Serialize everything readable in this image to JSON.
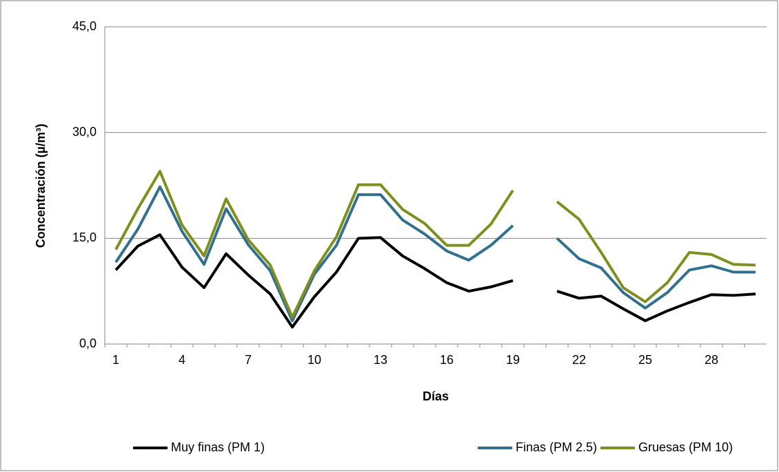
{
  "chart_data": {
    "type": "line",
    "x_label": "Días",
    "y_label": "Concentración (µ/m³)",
    "categories": [
      "1",
      null,
      null,
      "4",
      null,
      null,
      "7",
      null,
      null,
      "10",
      null,
      null,
      "13",
      null,
      null,
      "16",
      null,
      null,
      "19",
      null,
      null,
      "22",
      null,
      null,
      "25",
      null,
      null,
      "28",
      null,
      null
    ],
    "series": [
      {
        "name": "Muy finas (PM 1)",
        "color": "#000000",
        "values": [
          10.5,
          13.9,
          15.5,
          10.9,
          8.0,
          12.8,
          9.8,
          7.1,
          2.4,
          6.7,
          10.2,
          15.0,
          15.1,
          12.5,
          10.7,
          8.7,
          7.5,
          8.1,
          9.0,
          null,
          7.5,
          6.5,
          6.8,
          5.0,
          3.3,
          4.7,
          5.9,
          7.0,
          6.9,
          7.1
        ]
      },
      {
        "name": "Finas (PM 2.5)",
        "color": "#31708f",
        "values": [
          11.6,
          16.3,
          22.3,
          16.0,
          11.3,
          19.2,
          14.1,
          10.4,
          3.3,
          9.9,
          14.0,
          21.2,
          21.2,
          17.6,
          15.6,
          13.2,
          11.9,
          14.0,
          16.8,
          null,
          15.0,
          12.1,
          10.8,
          7.3,
          5.1,
          7.3,
          10.5,
          11.1,
          10.2,
          10.2
        ]
      },
      {
        "name": "Gruesas (PM 10)",
        "color": "#7f8f1f",
        "values": [
          13.4,
          19.2,
          24.5,
          16.9,
          12.5,
          20.6,
          14.8,
          11.2,
          3.8,
          10.4,
          15.2,
          22.6,
          22.6,
          19.1,
          17.1,
          14.0,
          14.0,
          17.0,
          21.8,
          null,
          20.2,
          17.7,
          13.0,
          8.0,
          6.0,
          8.7,
          13.0,
          12.7,
          11.3,
          11.2
        ]
      }
    ],
    "ylim": [
      0,
      45
    ],
    "yticks": [
      {
        "value": 0,
        "label": "0,0"
      },
      {
        "value": 15,
        "label": "15,0"
      },
      {
        "value": 30,
        "label": "30,0"
      },
      {
        "value": 45,
        "label": "45,0"
      }
    ],
    "grid": true,
    "legend": "bottom"
  }
}
